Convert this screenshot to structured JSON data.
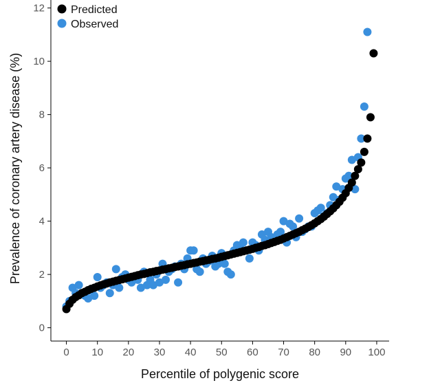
{
  "chart_data": {
    "type": "scatter",
    "xlabel": "Percentile of polygenic score",
    "ylabel": "Prevalence of coronary artery disease (%)",
    "xlim": [
      -5,
      104
    ],
    "ylim": [
      -0.5,
      12.3
    ],
    "xticks": [
      0,
      10,
      20,
      30,
      40,
      50,
      60,
      70,
      80,
      90,
      100
    ],
    "yticks": [
      0,
      2,
      4,
      6,
      8,
      10,
      12
    ],
    "grid": false,
    "legend": "top-left",
    "series": [
      {
        "name": "Observed",
        "color": "#3a8fdd",
        "x": [
          0,
          1,
          2,
          3,
          4,
          5,
          6,
          7,
          8,
          9,
          10,
          11,
          12,
          13,
          14,
          15,
          16,
          17,
          18,
          19,
          20,
          21,
          22,
          23,
          24,
          25,
          26,
          27,
          28,
          29,
          30,
          31,
          32,
          33,
          34,
          35,
          36,
          37,
          38,
          39,
          40,
          41,
          42,
          43,
          44,
          45,
          46,
          47,
          48,
          49,
          50,
          51,
          52,
          53,
          54,
          55,
          56,
          57,
          58,
          59,
          60,
          61,
          62,
          63,
          64,
          65,
          66,
          67,
          68,
          69,
          70,
          71,
          72,
          73,
          74,
          75,
          76,
          77,
          78,
          79,
          80,
          81,
          82,
          83,
          84,
          85,
          86,
          87,
          88,
          89,
          90,
          91,
          92,
          93,
          94,
          95,
          96,
          97,
          98,
          99
        ],
        "y": [
          0.8,
          1.0,
          1.5,
          1.3,
          1.6,
          1.3,
          1.2,
          1.1,
          1.4,
          1.2,
          1.9,
          1.5,
          1.6,
          1.7,
          1.3,
          1.6,
          2.2,
          1.5,
          1.9,
          2.0,
          1.8,
          1.7,
          1.9,
          1.8,
          1.5,
          2.1,
          1.6,
          1.8,
          1.6,
          2.0,
          1.7,
          2.4,
          1.8,
          2.1,
          2.2,
          2.3,
          1.7,
          2.4,
          2.2,
          2.6,
          2.9,
          2.9,
          2.2,
          2.1,
          2.6,
          2.4,
          2.5,
          2.7,
          2.3,
          2.4,
          2.8,
          2.4,
          2.1,
          2.0,
          2.9,
          3.1,
          3.0,
          3.2,
          2.9,
          2.6,
          3.2,
          3.1,
          2.9,
          3.5,
          3.3,
          3.6,
          3.4,
          3.3,
          3.5,
          3.6,
          4.0,
          3.2,
          3.9,
          3.8,
          3.4,
          4.1,
          3.6,
          3.7,
          3.8,
          3.8,
          4.3,
          4.4,
          4.5,
          4.2,
          4.3,
          4.6,
          4.9,
          5.3,
          4.8,
          5.2,
          5.6,
          5.7,
          6.3,
          5.2,
          6.4,
          7.1,
          8.3,
          11.1,
          null,
          null
        ]
      },
      {
        "name": "Predicted",
        "color": "#000000",
        "x": [
          0,
          1,
          2,
          3,
          4,
          5,
          6,
          7,
          8,
          9,
          10,
          11,
          12,
          13,
          14,
          15,
          16,
          17,
          18,
          19,
          20,
          21,
          22,
          23,
          24,
          25,
          26,
          27,
          28,
          29,
          30,
          31,
          32,
          33,
          34,
          35,
          36,
          37,
          38,
          39,
          40,
          41,
          42,
          43,
          44,
          45,
          46,
          47,
          48,
          49,
          50,
          51,
          52,
          53,
          54,
          55,
          56,
          57,
          58,
          59,
          60,
          61,
          62,
          63,
          64,
          65,
          66,
          67,
          68,
          69,
          70,
          71,
          72,
          73,
          74,
          75,
          76,
          77,
          78,
          79,
          80,
          81,
          82,
          83,
          84,
          85,
          86,
          87,
          88,
          89,
          90,
          91,
          92,
          93,
          94,
          95,
          96,
          97,
          98,
          99
        ],
        "y": [
          0.7,
          0.9,
          1.05,
          1.15,
          1.22,
          1.3,
          1.35,
          1.41,
          1.46,
          1.5,
          1.55,
          1.59,
          1.63,
          1.66,
          1.7,
          1.73,
          1.76,
          1.79,
          1.82,
          1.85,
          1.88,
          1.91,
          1.94,
          1.97,
          2.0,
          2.02,
          2.05,
          2.08,
          2.1,
          2.13,
          2.15,
          2.18,
          2.2,
          2.23,
          2.25,
          2.28,
          2.3,
          2.33,
          2.35,
          2.38,
          2.4,
          2.43,
          2.45,
          2.48,
          2.5,
          2.53,
          2.55,
          2.58,
          2.6,
          2.63,
          2.66,
          2.69,
          2.72,
          2.75,
          2.78,
          2.81,
          2.84,
          2.87,
          2.9,
          2.93,
          2.96,
          3.0,
          3.03,
          3.07,
          3.1,
          3.14,
          3.18,
          3.22,
          3.26,
          3.3,
          3.35,
          3.4,
          3.45,
          3.5,
          3.55,
          3.6,
          3.66,
          3.72,
          3.78,
          3.85,
          3.92,
          4.0,
          4.08,
          4.17,
          4.27,
          4.37,
          4.48,
          4.6,
          4.73,
          4.88,
          5.05,
          5.25,
          5.45,
          5.7,
          5.95,
          6.2,
          6.6,
          7.1,
          7.9,
          10.3
        ]
      }
    ]
  }
}
